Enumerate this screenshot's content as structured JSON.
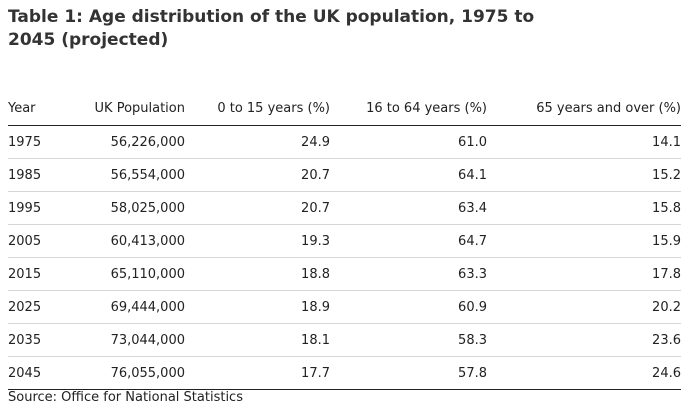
{
  "title": "Table 1: Age distribution of the UK population, 1975 to 2045 (projected)",
  "columns": [
    "Year",
    "UK Population",
    "0 to 15 years (%)",
    "16 to 64 years (%)",
    "65 years and over (%)"
  ],
  "rows": [
    [
      "1975",
      "56,226,000",
      "24.9",
      "61.0",
      "14.1"
    ],
    [
      "1985",
      "56,554,000",
      "20.7",
      "64.1",
      "15.2"
    ],
    [
      "1995",
      "58,025,000",
      "20.7",
      "63.4",
      "15.8"
    ],
    [
      "2005",
      "60,413,000",
      "19.3",
      "64.7",
      "15.9"
    ],
    [
      "2015",
      "65,110,000",
      "18.8",
      "63.3",
      "17.8"
    ],
    [
      "2025",
      "69,444,000",
      "18.9",
      "60.9",
      "20.2"
    ],
    [
      "2035",
      "73,044,000",
      "18.1",
      "58.3",
      "23.6"
    ],
    [
      "2045",
      "76,055,000",
      "17.7",
      "57.8",
      "24.6"
    ]
  ],
  "source": "Source: Office for National Statistics"
}
